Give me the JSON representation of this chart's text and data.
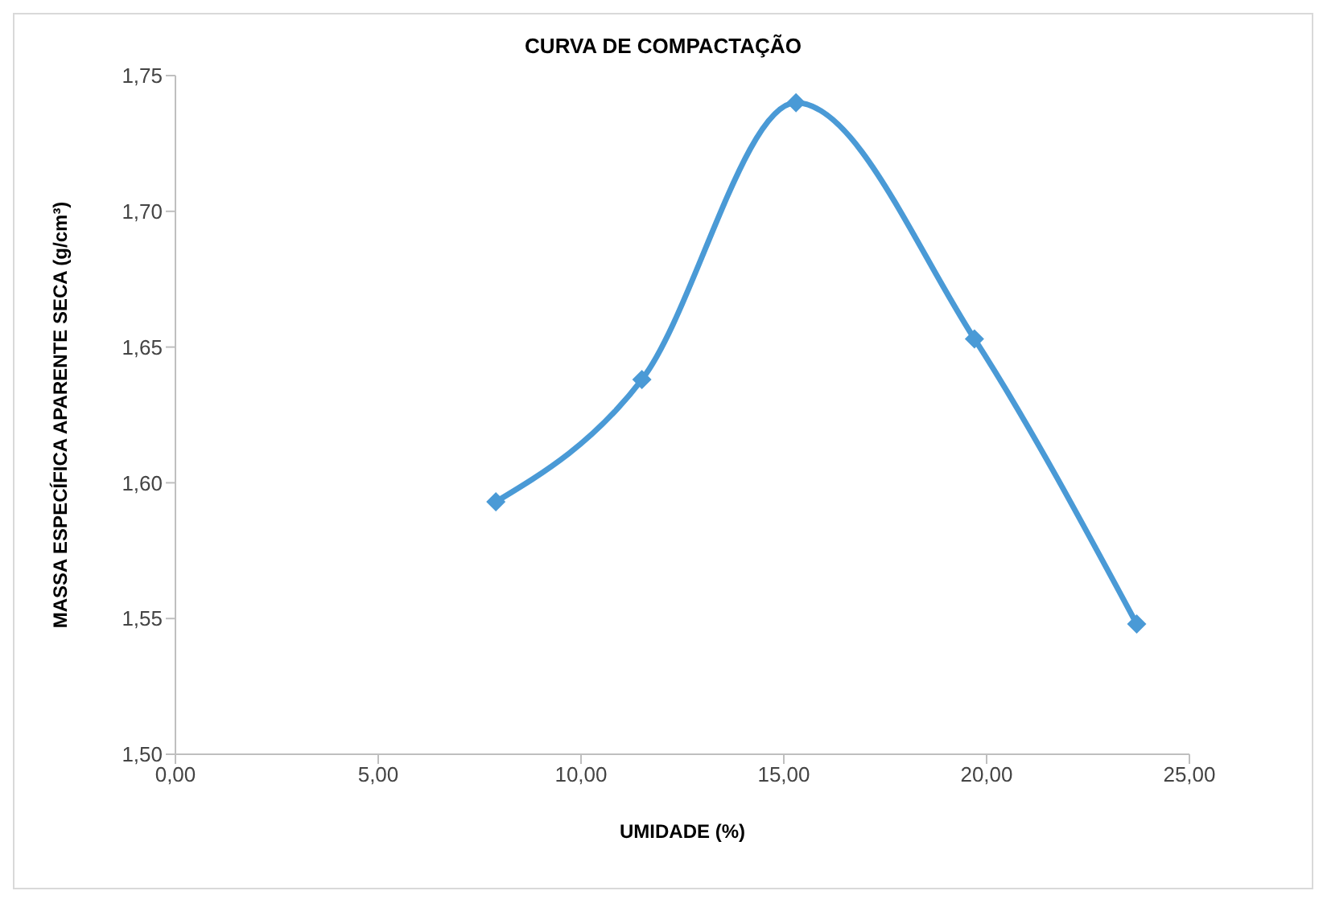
{
  "chart_data": {
    "type": "line",
    "title": "CURVA DE COMPACTAÇÃO",
    "xlabel": "UMIDADE (%)",
    "ylabel": "MASSA ESPECÍFICA APARENTE SECA (g/cm³)",
    "x": [
      7.9,
      11.5,
      15.3,
      19.7,
      23.7
    ],
    "series": [
      {
        "color": "#4a9ad6",
        "values": [
          1.593,
          1.638,
          1.74,
          1.653,
          1.548
        ]
      }
    ],
    "xlim": [
      0,
      25
    ],
    "xticks": [
      {
        "value": 0,
        "label": "0,00"
      },
      {
        "value": 5,
        "label": "5,00"
      },
      {
        "value": 10,
        "label": "10,00"
      },
      {
        "value": 15,
        "label": "15,00"
      },
      {
        "value": 20,
        "label": "20,00"
      },
      {
        "value": 25,
        "label": "25,00"
      }
    ],
    "ylim": [
      1.5,
      1.75
    ],
    "yticks": [
      {
        "value": 1.5,
        "label": "1,50"
      },
      {
        "value": 1.55,
        "label": "1,55"
      },
      {
        "value": 1.6,
        "label": "1,60"
      },
      {
        "value": 1.65,
        "label": "1,65"
      },
      {
        "value": 1.7,
        "label": "1,70"
      },
      {
        "value": 1.75,
        "label": "1,75"
      }
    ],
    "marker": "diamond",
    "line_style": "solid"
  }
}
